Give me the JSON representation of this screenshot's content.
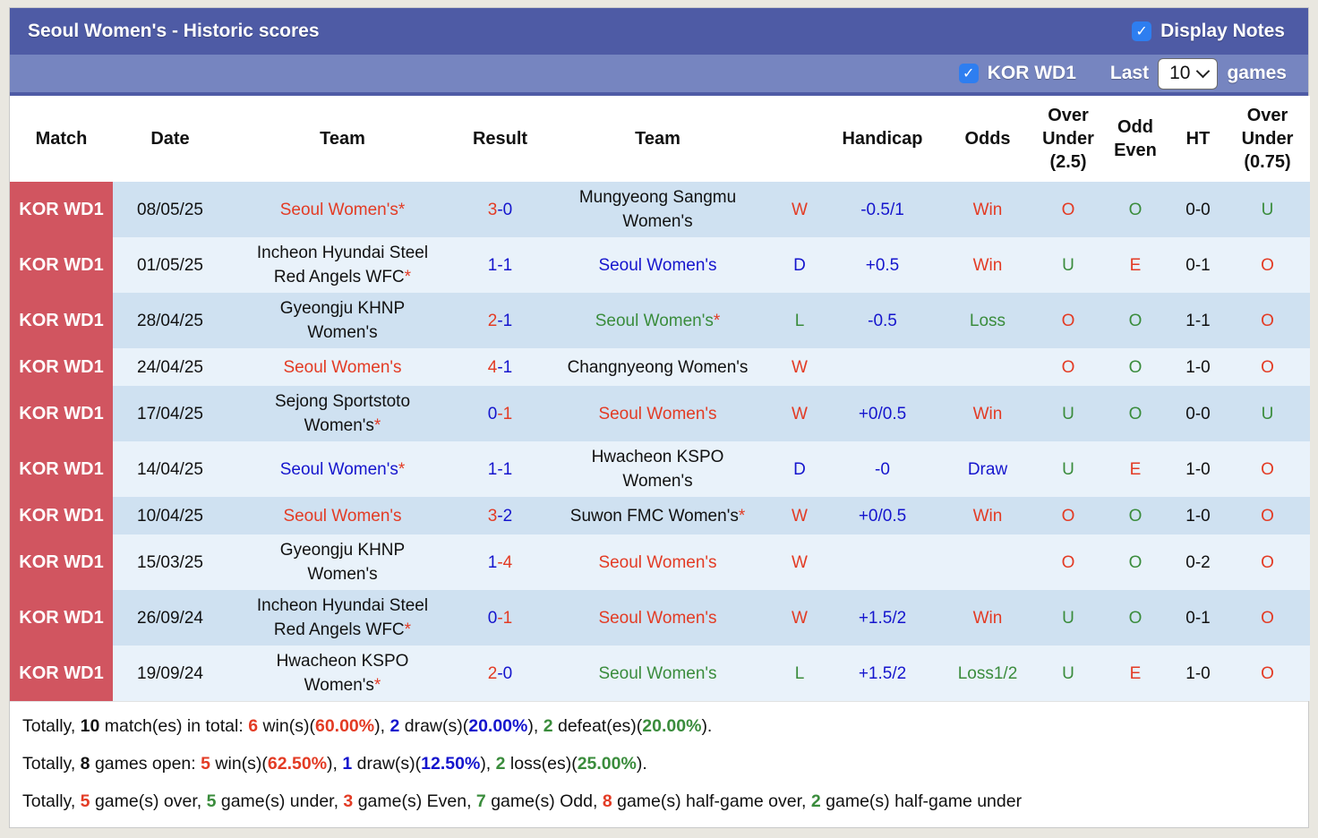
{
  "colors": {
    "bar_dark": "#4e5ba5",
    "bar_light": "#7685c0",
    "checkbox_blue": "#2e7ef0",
    "league_red": "#d15560",
    "row_stripe_dark": "#cfe1f1",
    "row_stripe_light": "#e9f2fa",
    "text_red": "#e33b24",
    "text_blue": "#1515cd",
    "text_green": "#3a8c3c"
  },
  "title_bar": {
    "title": "Seoul Women's - Historic scores",
    "display_notes_checked": "✓",
    "display_notes_label": "Display Notes"
  },
  "filter_bar": {
    "league_checked": "✓",
    "league_label": "KOR WD1",
    "last_label": "Last",
    "games_count": "10",
    "games_label": "games"
  },
  "table": {
    "headers": [
      "Match",
      "Date",
      "Team",
      "Result",
      "Team",
      "",
      "Handicap",
      "Odds",
      "Over Under (2.5)",
      "Odd Even",
      "HT",
      "Over Under (0.75)"
    ],
    "rows": [
      {
        "league": "KOR WD1",
        "date": "08/05/25",
        "team1": {
          "t": "Seoul Women's*",
          "c": "red"
        },
        "result": [
          {
            "t": "3",
            "c": "red"
          },
          {
            "t": "-0",
            "c": "blue"
          }
        ],
        "team2": {
          "t": "Mungyeong Sangmu\nWomen's",
          "c": "black"
        },
        "wdl": {
          "t": "W",
          "c": "red"
        },
        "handicap": {
          "t": "-0.5/1",
          "c": "blue"
        },
        "odds": {
          "t": "Win",
          "c": "red"
        },
        "ou25": {
          "t": "O",
          "c": "red"
        },
        "oddeven": {
          "t": "O",
          "c": "green"
        },
        "ht": "0-0",
        "ou075": {
          "t": "U",
          "c": "green"
        }
      },
      {
        "league": "KOR WD1",
        "date": "01/05/25",
        "team1": [
          {
            "t": "Incheon Hyundai Steel\nRed Angels WFC",
            "c": "black"
          },
          {
            "t": "*",
            "c": "red"
          }
        ],
        "result": [
          {
            "t": "1-1",
            "c": "blue"
          }
        ],
        "team2": {
          "t": "Seoul Women's",
          "c": "blue"
        },
        "wdl": {
          "t": "D",
          "c": "blue"
        },
        "handicap": {
          "t": "+0.5",
          "c": "blue"
        },
        "odds": {
          "t": "Win",
          "c": "red"
        },
        "ou25": {
          "t": "U",
          "c": "green"
        },
        "oddeven": {
          "t": "E",
          "c": "red"
        },
        "ht": "0-1",
        "ou075": {
          "t": "O",
          "c": "red"
        }
      },
      {
        "league": "KOR WD1",
        "date": "28/04/25",
        "team1": {
          "t": "Gyeongju KHNP\nWomen's",
          "c": "black"
        },
        "result": [
          {
            "t": "2",
            "c": "red"
          },
          {
            "t": "-1",
            "c": "blue"
          }
        ],
        "team2": [
          {
            "t": "Seoul Women's",
            "c": "green"
          },
          {
            "t": "*",
            "c": "red"
          }
        ],
        "wdl": {
          "t": "L",
          "c": "green"
        },
        "handicap": {
          "t": "-0.5",
          "c": "blue"
        },
        "odds": {
          "t": "Loss",
          "c": "green"
        },
        "ou25": {
          "t": "O",
          "c": "red"
        },
        "oddeven": {
          "t": "O",
          "c": "green"
        },
        "ht": "1-1",
        "ou075": {
          "t": "O",
          "c": "red"
        }
      },
      {
        "league": "KOR WD1",
        "date": "24/04/25",
        "team1": {
          "t": "Seoul Women's",
          "c": "red"
        },
        "result": [
          {
            "t": "4",
            "c": "red"
          },
          {
            "t": "-1",
            "c": "blue"
          }
        ],
        "team2": {
          "t": "Changnyeong Women's",
          "c": "black"
        },
        "wdl": {
          "t": "W",
          "c": "red"
        },
        "handicap": null,
        "odds": null,
        "ou25": {
          "t": "O",
          "c": "red"
        },
        "oddeven": {
          "t": "O",
          "c": "green"
        },
        "ht": "1-0",
        "ou075": {
          "t": "O",
          "c": "red"
        }
      },
      {
        "league": "KOR WD1",
        "date": "17/04/25",
        "team1": [
          {
            "t": "Sejong Sportstoto\nWomen's",
            "c": "black"
          },
          {
            "t": "*",
            "c": "red"
          }
        ],
        "result": [
          {
            "t": "0",
            "c": "blue"
          },
          {
            "t": "-1",
            "c": "red"
          }
        ],
        "team2": {
          "t": "Seoul Women's",
          "c": "red"
        },
        "wdl": {
          "t": "W",
          "c": "red"
        },
        "handicap": {
          "t": "+0/0.5",
          "c": "blue"
        },
        "odds": {
          "t": "Win",
          "c": "red"
        },
        "ou25": {
          "t": "U",
          "c": "green"
        },
        "oddeven": {
          "t": "O",
          "c": "green"
        },
        "ht": "0-0",
        "ou075": {
          "t": "U",
          "c": "green"
        }
      },
      {
        "league": "KOR WD1",
        "date": "14/04/25",
        "team1": [
          {
            "t": "Seoul Women's",
            "c": "blue"
          },
          {
            "t": "*",
            "c": "red"
          }
        ],
        "result": [
          {
            "t": "1-1",
            "c": "blue"
          }
        ],
        "team2": {
          "t": "Hwacheon KSPO\nWomen's",
          "c": "black"
        },
        "wdl": {
          "t": "D",
          "c": "blue"
        },
        "handicap": {
          "t": "-0",
          "c": "blue"
        },
        "odds": {
          "t": "Draw",
          "c": "blue"
        },
        "ou25": {
          "t": "U",
          "c": "green"
        },
        "oddeven": {
          "t": "E",
          "c": "red"
        },
        "ht": "1-0",
        "ou075": {
          "t": "O",
          "c": "red"
        }
      },
      {
        "league": "KOR WD1",
        "date": "10/04/25",
        "team1": {
          "t": "Seoul Women's",
          "c": "red"
        },
        "result": [
          {
            "t": "3",
            "c": "red"
          },
          {
            "t": "-2",
            "c": "blue"
          }
        ],
        "team2": [
          {
            "t": "Suwon FMC Women's",
            "c": "black"
          },
          {
            "t": "*",
            "c": "red"
          }
        ],
        "wdl": {
          "t": "W",
          "c": "red"
        },
        "handicap": {
          "t": "+0/0.5",
          "c": "blue"
        },
        "odds": {
          "t": "Win",
          "c": "red"
        },
        "ou25": {
          "t": "O",
          "c": "red"
        },
        "oddeven": {
          "t": "O",
          "c": "green"
        },
        "ht": "1-0",
        "ou075": {
          "t": "O",
          "c": "red"
        }
      },
      {
        "league": "KOR WD1",
        "date": "15/03/25",
        "team1": {
          "t": "Gyeongju KHNP\nWomen's",
          "c": "black"
        },
        "result": [
          {
            "t": "1",
            "c": "blue"
          },
          {
            "t": "-4",
            "c": "red"
          }
        ],
        "team2": {
          "t": "Seoul Women's",
          "c": "red"
        },
        "wdl": {
          "t": "W",
          "c": "red"
        },
        "handicap": null,
        "odds": null,
        "ou25": {
          "t": "O",
          "c": "red"
        },
        "oddeven": {
          "t": "O",
          "c": "green"
        },
        "ht": "0-2",
        "ou075": {
          "t": "O",
          "c": "red"
        }
      },
      {
        "league": "KOR WD1",
        "date": "26/09/24",
        "team1": [
          {
            "t": "Incheon Hyundai Steel\nRed Angels WFC",
            "c": "black"
          },
          {
            "t": "*",
            "c": "red"
          }
        ],
        "result": [
          {
            "t": "0",
            "c": "blue"
          },
          {
            "t": "-1",
            "c": "red"
          }
        ],
        "team2": {
          "t": "Seoul Women's",
          "c": "red"
        },
        "wdl": {
          "t": "W",
          "c": "red"
        },
        "handicap": {
          "t": "+1.5/2",
          "c": "blue"
        },
        "odds": {
          "t": "Win",
          "c": "red"
        },
        "ou25": {
          "t": "U",
          "c": "green"
        },
        "oddeven": {
          "t": "O",
          "c": "green"
        },
        "ht": "0-1",
        "ou075": {
          "t": "O",
          "c": "red"
        }
      },
      {
        "league": "KOR WD1",
        "date": "19/09/24",
        "team1": [
          {
            "t": "Hwacheon KSPO\nWomen's",
            "c": "black"
          },
          {
            "t": "*",
            "c": "red"
          }
        ],
        "result": [
          {
            "t": "2",
            "c": "red"
          },
          {
            "t": "-0",
            "c": "blue"
          }
        ],
        "team2": {
          "t": "Seoul Women's",
          "c": "green"
        },
        "wdl": {
          "t": "L",
          "c": "green"
        },
        "handicap": {
          "t": "+1.5/2",
          "c": "blue"
        },
        "odds": {
          "t": "Loss1/2",
          "c": "green"
        },
        "ou25": {
          "t": "U",
          "c": "green"
        },
        "oddeven": {
          "t": "E",
          "c": "red"
        },
        "ht": "1-0",
        "ou075": {
          "t": "O",
          "c": "red"
        }
      }
    ]
  },
  "footer": {
    "lines": [
      [
        {
          "t": "Totally, "
        },
        {
          "t": "10",
          "c": "black b"
        },
        {
          "t": " match(es) in total: "
        },
        {
          "t": "6",
          "c": "red b"
        },
        {
          "t": " win(s)("
        },
        {
          "t": "60.00%",
          "c": "red b"
        },
        {
          "t": "), "
        },
        {
          "t": "2",
          "c": "blue b"
        },
        {
          "t": " draw(s)("
        },
        {
          "t": "20.00%",
          "c": "blue b"
        },
        {
          "t": "), "
        },
        {
          "t": "2",
          "c": "green b"
        },
        {
          "t": " defeat(es)("
        },
        {
          "t": "20.00%",
          "c": "green b"
        },
        {
          "t": ")."
        }
      ],
      [
        {
          "t": "Totally, "
        },
        {
          "t": "8",
          "c": "black b"
        },
        {
          "t": " games open: "
        },
        {
          "t": "5",
          "c": "red b"
        },
        {
          "t": " win(s)("
        },
        {
          "t": "62.50%",
          "c": "red b"
        },
        {
          "t": "), "
        },
        {
          "t": "1",
          "c": "blue b"
        },
        {
          "t": " draw(s)("
        },
        {
          "t": "12.50%",
          "c": "blue b"
        },
        {
          "t": "), "
        },
        {
          "t": "2",
          "c": "green b"
        },
        {
          "t": " loss(es)("
        },
        {
          "t": "25.00%",
          "c": "green b"
        },
        {
          "t": ")."
        }
      ],
      [
        {
          "t": "Totally, "
        },
        {
          "t": "5",
          "c": "red b"
        },
        {
          "t": " game(s) over, "
        },
        {
          "t": "5",
          "c": "green b"
        },
        {
          "t": " game(s) under, "
        },
        {
          "t": "3",
          "c": "red b"
        },
        {
          "t": " game(s) Even, "
        },
        {
          "t": "7",
          "c": "green b"
        },
        {
          "t": " game(s) Odd, "
        },
        {
          "t": "8",
          "c": "red b"
        },
        {
          "t": " game(s) half-game over, "
        },
        {
          "t": "2",
          "c": "green b"
        },
        {
          "t": " game(s) half-game under"
        }
      ]
    ]
  }
}
